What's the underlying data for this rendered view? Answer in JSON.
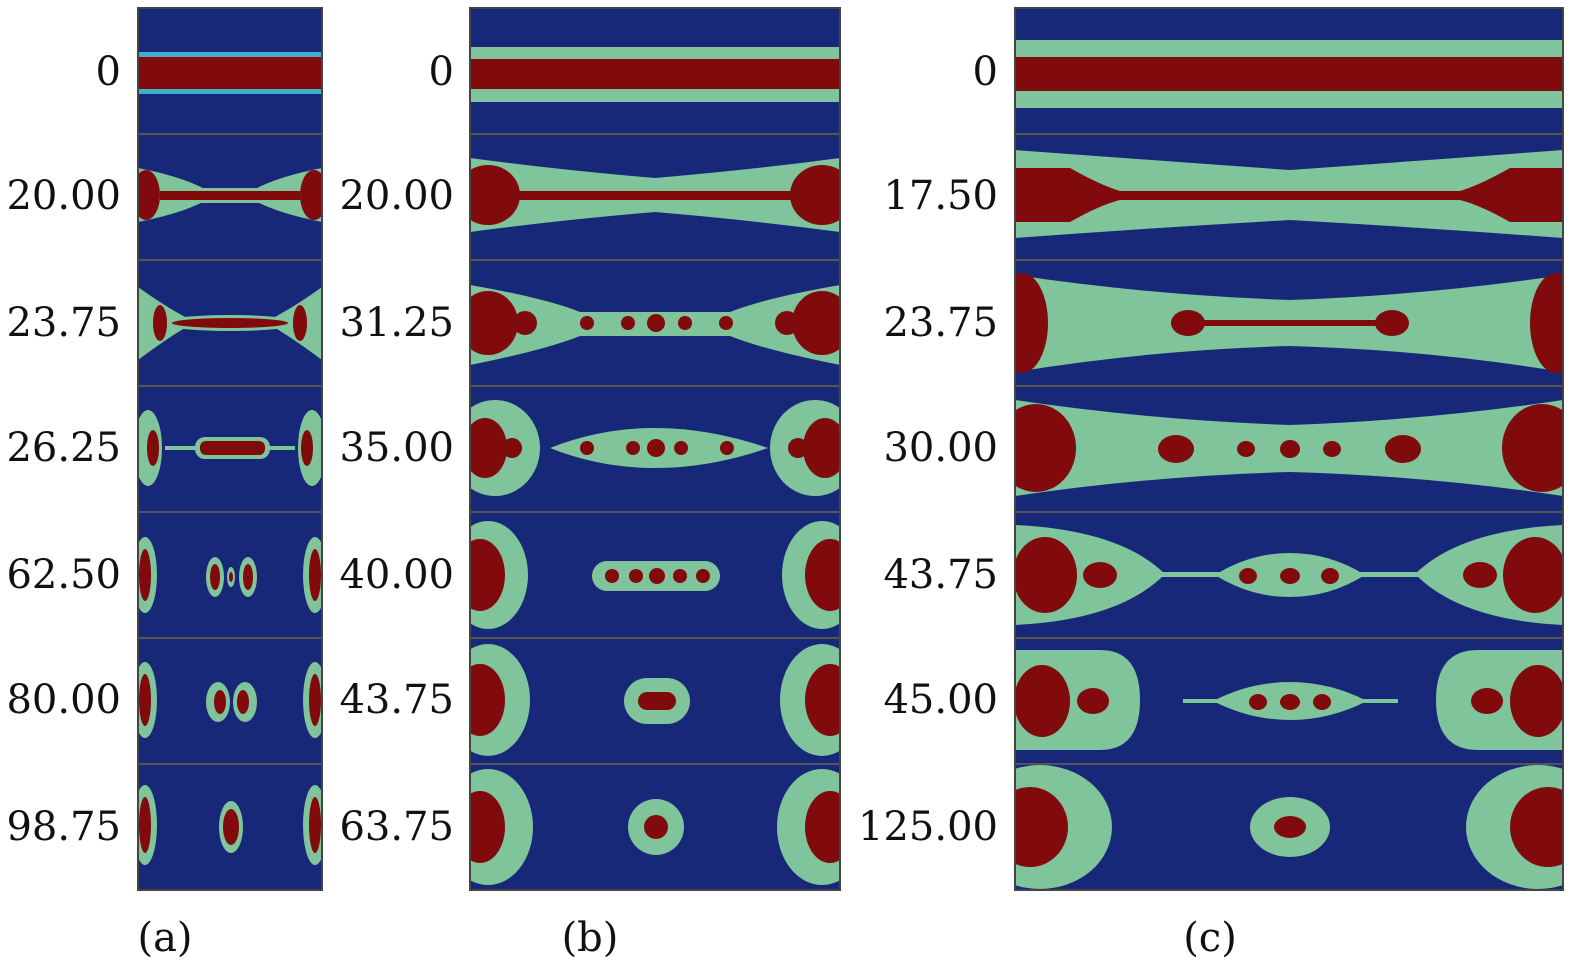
{
  "figure": {
    "colors": {
      "bg": "#182879",
      "shell": "#7fc49a",
      "edge": "#3fb0c8",
      "core": "#800a0c"
    },
    "panels": [
      {
        "id": "a",
        "label": "(a)",
        "times": [
          "0",
          "20.00",
          "23.75",
          "26.25",
          "62.50",
          "80.00",
          "98.75"
        ]
      },
      {
        "id": "b",
        "label": "(b)",
        "times": [
          "0",
          "20.00",
          "31.25",
          "35.00",
          "40.00",
          "43.75",
          "63.75"
        ]
      },
      {
        "id": "c",
        "label": "(c)",
        "times": [
          "0",
          "17.50",
          "23.75",
          "30.00",
          "43.75",
          "45.00",
          "125.00"
        ]
      }
    ]
  }
}
